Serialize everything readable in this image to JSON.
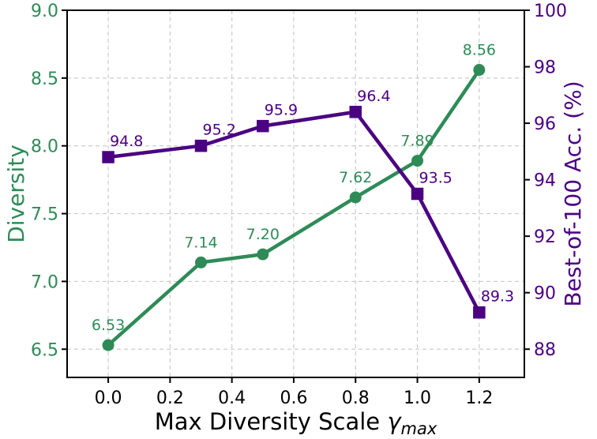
{
  "figure": {
    "background": "#ffffff",
    "spine_color": "#000000",
    "tick_color": "#000000"
  },
  "chart_data": {
    "type": "line",
    "x": [
      0.0,
      0.3,
      0.5,
      0.8,
      1.0,
      1.2
    ],
    "series": [
      {
        "name": "diversity",
        "axis": "left",
        "color": "#2e8b57",
        "marker": "circle",
        "values": [
          6.53,
          7.14,
          7.2,
          7.62,
          7.89,
          8.56
        ],
        "point_labels": [
          "6.53",
          "7.14",
          "7.20",
          "7.62",
          "7.89",
          "8.56"
        ]
      },
      {
        "name": "best-of-100-accuracy",
        "axis": "right",
        "color": "#4b0082",
        "marker": "square",
        "values": [
          94.8,
          95.2,
          95.9,
          96.4,
          93.5,
          89.3
        ],
        "point_labels": [
          "94.8",
          "95.2",
          "95.9",
          "96.4",
          "93.5",
          "89.3"
        ]
      }
    ],
    "xlabel": {
      "text": "Max Diversity Scale",
      "symbol": "γ",
      "subscript": "max"
    },
    "x_axis": {
      "tick_values": [
        0.0,
        0.2,
        0.4,
        0.6,
        0.8,
        1.0,
        1.2
      ],
      "tick_labels": [
        "0.0",
        "0.2",
        "0.4",
        "0.6",
        "0.8",
        "1.0",
        "1.2"
      ],
      "lim": [
        -0.133,
        1.346
      ],
      "label_color": "#000000"
    },
    "left_axis": {
      "label": "Diversity",
      "color": "#2e8b57",
      "tick_values": [
        6.5,
        7.0,
        7.5,
        8.0,
        8.5,
        9.0
      ],
      "tick_labels": [
        "6.5",
        "7.0",
        "7.5",
        "8.0",
        "8.5",
        "9.0"
      ],
      "lim": [
        6.292,
        9.0
      ]
    },
    "right_axis": {
      "label": "Best-of-100 Acc. (%)",
      "color": "#4b0082",
      "tick_values": [
        88,
        90,
        92,
        94,
        96,
        98,
        100
      ],
      "tick_labels": [
        "88",
        "90",
        "92",
        "94",
        "96",
        "98",
        "100"
      ],
      "lim": [
        87.0,
        100.0
      ]
    },
    "grid": {
      "on": true,
      "color": "#cbcbcb",
      "dash": "5 4"
    }
  }
}
